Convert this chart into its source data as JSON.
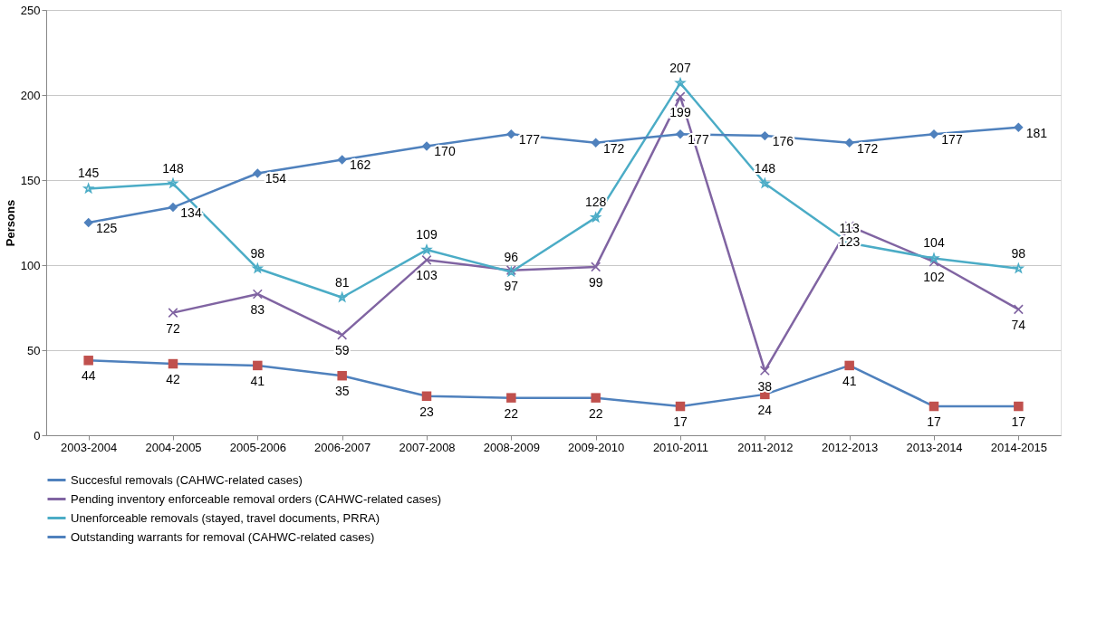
{
  "chart_data": {
    "type": "line",
    "ylabel": "Persons",
    "categories": [
      "2003-2004",
      "2004-2005",
      "2005-2006",
      "2006-2007",
      "2007-2008",
      "2008-2009",
      "2009-2010",
      "2010-2011",
      "2011-2012",
      "2012-2013",
      "2013-2014",
      "2014-2015"
    ],
    "ylim": [
      0,
      250
    ],
    "yticks": [
      0,
      50,
      100,
      150,
      200,
      250
    ],
    "grid": "y",
    "legend": "bottom",
    "data_labels": true,
    "series": [
      {
        "name": "Succesful removals (CAHWC-related cases)",
        "color": "#4f81bd",
        "colors": [
          "#c0504d",
          "#c0504d",
          "#c0504d",
          "#c0504d",
          "#c0504d",
          "#c0504d",
          "#c0504d",
          "#c0504d",
          "#c0504d",
          "#c0504d",
          "#c0504d",
          "#c0504d"
        ],
        "marker": "square",
        "values": [
          44,
          42,
          41,
          35,
          23,
          22,
          22,
          17,
          24,
          41,
          17,
          17
        ]
      },
      {
        "name": "Pending inventory enforceable removal orders (CAHWC-related cases)",
        "color": "#8064a2",
        "marker": "cross",
        "values": [
          null,
          72,
          83,
          59,
          103,
          97,
          99,
          199,
          38,
          123,
          102,
          74
        ]
      },
      {
        "name": "Unenforceable removals (stayed, travel documents, PRRA)",
        "color": "#4bacc6",
        "marker": "star",
        "values": [
          145,
          148,
          98,
          81,
          109,
          96,
          128,
          207,
          148,
          113,
          104,
          98
        ]
      },
      {
        "name": "Outstanding warrants for removal (CAHWC-related cases)",
        "color": "#4f81bd",
        "marker": "diamond",
        "values": [
          125,
          134,
          154,
          162,
          170,
          177,
          172,
          177,
          176,
          172,
          177,
          181
        ]
      }
    ]
  }
}
